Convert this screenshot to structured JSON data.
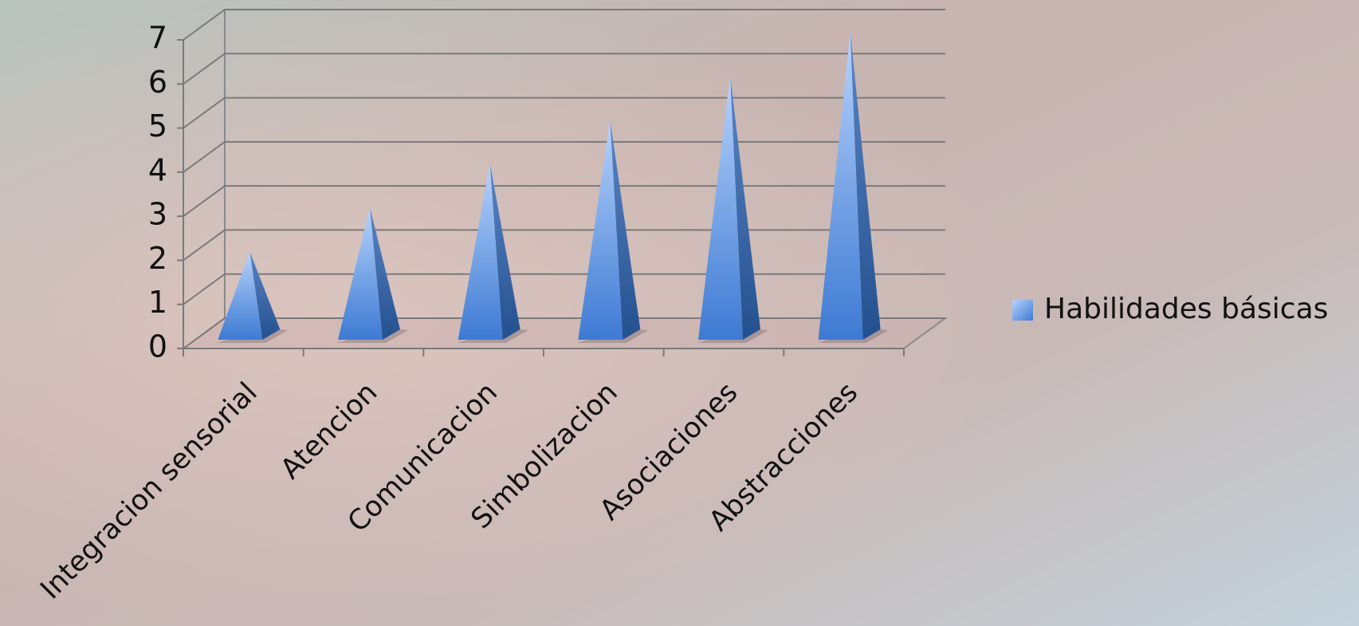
{
  "chart_data": {
    "type": "pyramid",
    "categories": [
      "Integracion sensorial",
      "Atencion",
      "Comunicacion",
      "Simbolizacion",
      "Asociaciones",
      "Abstracciones"
    ],
    "series": [
      {
        "name": "Habilidades básicas",
        "color": "#4a86dc",
        "values": [
          2,
          3,
          4,
          5,
          6,
          7
        ]
      }
    ],
    "ylim": [
      0,
      7
    ],
    "yticks": [
      0,
      1,
      2,
      3,
      4,
      5,
      6,
      7
    ],
    "grid": true,
    "legend": "right"
  }
}
